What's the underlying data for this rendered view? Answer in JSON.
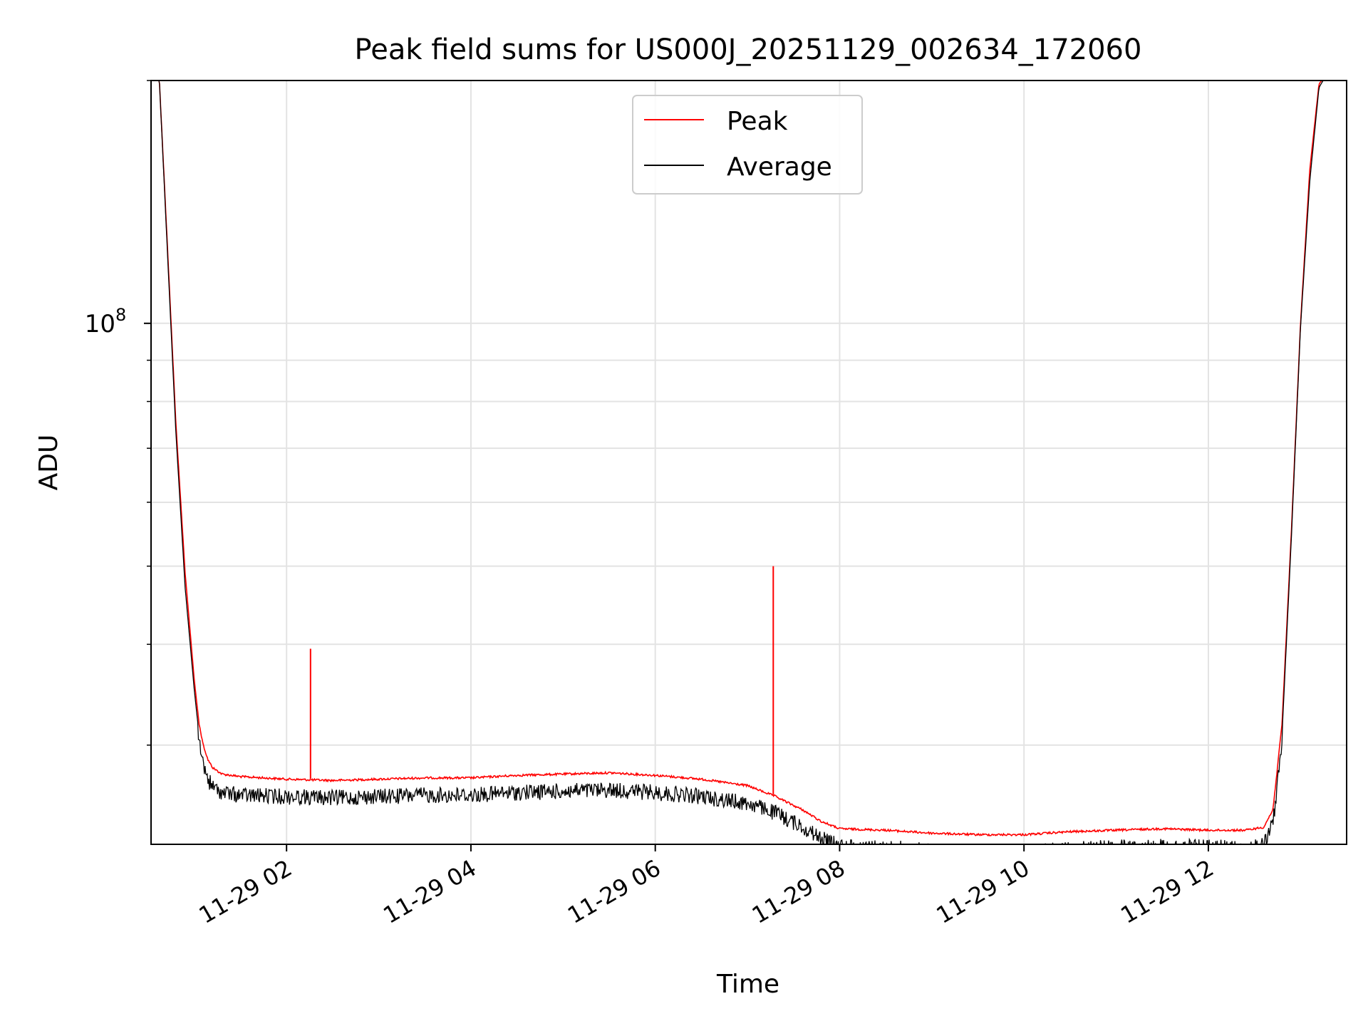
{
  "chart_data": {
    "type": "line",
    "title": "Peak field sums for US000J_20251129_002634_172060",
    "xlabel": "Time",
    "ylabel": "ADU",
    "yscale": "log",
    "xlim_hours": [
      0.53,
      13.5
    ],
    "ylim": [
      22600000,
      200000000
    ],
    "ytick_major": {
      "value": 100000000,
      "base": "10",
      "exponent": "8"
    },
    "ytick_minor": [
      30000000,
      40000000,
      50000000,
      60000000,
      70000000,
      80000000,
      90000000,
      200000000
    ],
    "xticks": [
      {
        "hour": 2,
        "label": "11-29 02"
      },
      {
        "hour": 4,
        "label": "11-29 04"
      },
      {
        "hour": 6,
        "label": "11-29 06"
      },
      {
        "hour": 8,
        "label": "11-29 08"
      },
      {
        "hour": 10,
        "label": "11-29 10"
      },
      {
        "hour": 12,
        "label": "11-29 12"
      }
    ],
    "grid": true,
    "legend": {
      "position": "top-center",
      "entries": [
        "Peak",
        "Average"
      ]
    },
    "series": [
      {
        "name": "Peak",
        "color": "#ff0000",
        "x": [
          0.55,
          0.62,
          0.7,
          0.8,
          0.9,
          1.0,
          1.05,
          1.1,
          1.15,
          1.2,
          1.3,
          1.5,
          2.0,
          2.5,
          3.0,
          3.5,
          4.0,
          4.5,
          5.0,
          5.5,
          6.0,
          6.5,
          7.0,
          7.3,
          7.6,
          7.8,
          8.0,
          8.5,
          9.0,
          9.5,
          10.0,
          10.5,
          11.0,
          11.5,
          12.0,
          12.4,
          12.6,
          12.7,
          12.8,
          12.9,
          13.0,
          13.1,
          13.2,
          13.3
        ],
        "values": [
          205000000,
          200000000,
          130000000,
          75000000,
          49000000,
          36000000,
          32000000,
          30000000,
          28800000,
          28200000,
          27700000,
          27500000,
          27300000,
          27200000,
          27300000,
          27400000,
          27400000,
          27600000,
          27700000,
          27800000,
          27600000,
          27300000,
          26800000,
          26000000,
          25000000,
          24200000,
          23700000,
          23600000,
          23400000,
          23300000,
          23300000,
          23500000,
          23600000,
          23700000,
          23600000,
          23600000,
          23800000,
          25000000,
          32000000,
          55000000,
          100000000,
          155000000,
          198000000,
          205000000
        ],
        "spikes": [
          {
            "hour": 2.26,
            "value": 39500000
          },
          {
            "hour": 7.28,
            "value": 50000000
          }
        ]
      },
      {
        "name": "Average",
        "color": "#000000",
        "x": [
          0.55,
          0.62,
          0.7,
          0.8,
          0.9,
          1.0,
          1.05,
          1.1,
          1.15,
          1.2,
          1.3,
          1.5,
          2.0,
          2.5,
          3.0,
          3.5,
          4.0,
          4.5,
          5.0,
          5.5,
          6.0,
          6.5,
          7.0,
          7.3,
          7.6,
          7.8,
          8.0,
          8.5,
          9.0,
          9.5,
          10.0,
          10.5,
          11.0,
          11.5,
          12.0,
          12.4,
          12.6,
          12.7,
          12.8,
          12.9,
          13.0,
          13.1,
          13.2,
          13.3
        ],
        "values": [
          205000000,
          200000000,
          128000000,
          73000000,
          47000000,
          35000000,
          31000000,
          29000000,
          27800000,
          27200000,
          26800000,
          26600000,
          26500000,
          26400000,
          26500000,
          26600000,
          26600000,
          26800000,
          26900000,
          27000000,
          26800000,
          26500000,
          26000000,
          25300000,
          24300000,
          23500000,
          23000000,
          22900000,
          22700000,
          22600000,
          22600000,
          22800000,
          22900000,
          23000000,
          22900000,
          22900000,
          23100000,
          24500000,
          31000000,
          54000000,
          99000000,
          150000000,
          196000000,
          205000000
        ],
        "noise_band": 0.028
      }
    ]
  }
}
